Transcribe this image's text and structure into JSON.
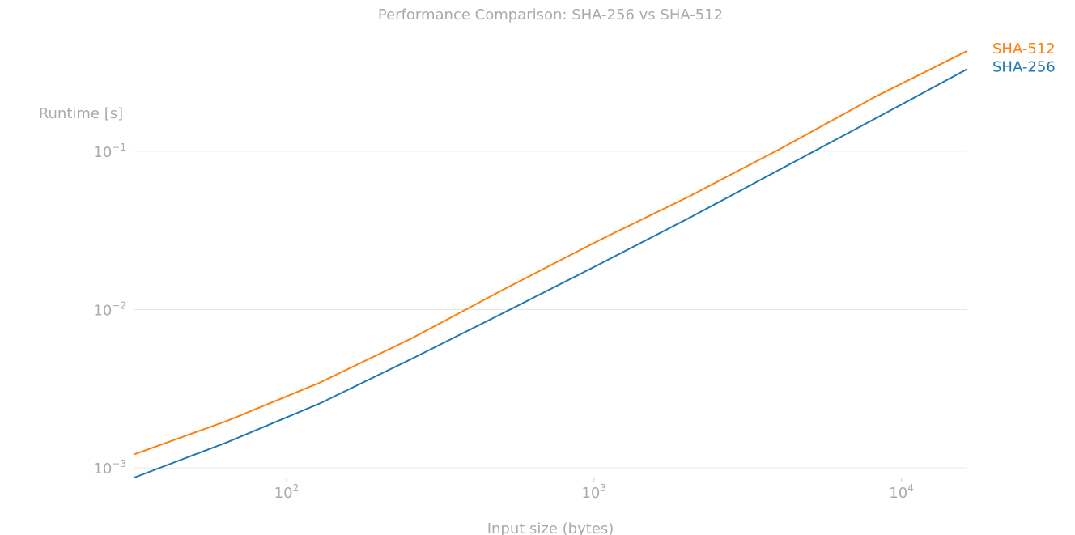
{
  "chart_data": {
    "type": "line",
    "title": "Performance Comparison: SHA-256 vs SHA-512",
    "xlabel": "Input size (bytes)",
    "ylabel": "Runtime [s]",
    "xscale": "log",
    "yscale": "log",
    "xlim": [
      32,
      16384
    ],
    "ylim": [
      0.00087,
      0.5
    ],
    "grid": "y-major",
    "legend": "right, inline at line ends",
    "x": [
      32,
      64,
      128,
      256,
      512,
      1024,
      2048,
      4096,
      8192,
      16384
    ],
    "xticks": [
      {
        "value": 100,
        "base": "10",
        "exp": "2"
      },
      {
        "value": 1000,
        "base": "10",
        "exp": "3"
      },
      {
        "value": 10000,
        "base": "10",
        "exp": "4"
      }
    ],
    "yticks": [
      {
        "value": 0.001,
        "base": "10",
        "exp": "−3"
      },
      {
        "value": 0.01,
        "base": "10",
        "exp": "−2"
      },
      {
        "value": 0.1,
        "base": "10",
        "exp": "−1"
      }
    ],
    "series": [
      {
        "name": "SHA-512",
        "color": "#ff7f0e",
        "values": [
          0.00122,
          0.00198,
          0.00345,
          0.0066,
          0.0135,
          0.027,
          0.052,
          0.105,
          0.22,
          0.43
        ]
      },
      {
        "name": "SHA-256",
        "color": "#1f77b4",
        "values": [
          0.00087,
          0.00145,
          0.00255,
          0.0049,
          0.0096,
          0.019,
          0.038,
          0.078,
          0.16,
          0.33
        ]
      }
    ]
  }
}
